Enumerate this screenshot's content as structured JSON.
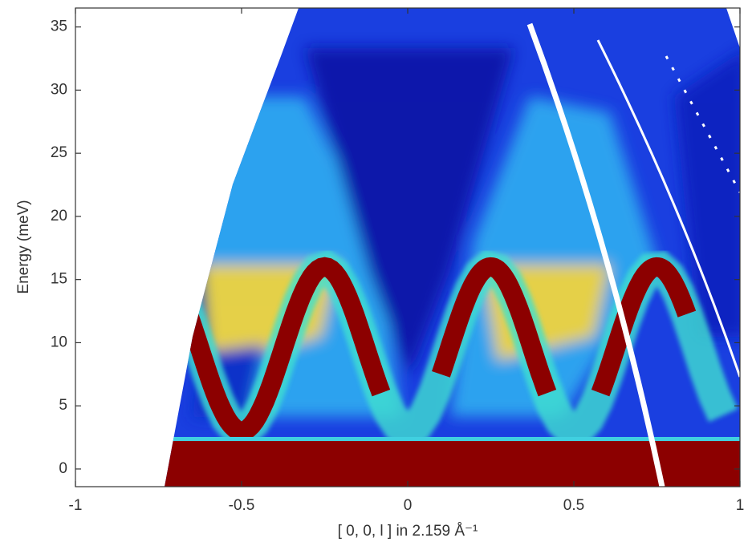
{
  "chart_data": {
    "type": "heatmap",
    "xlabel": "[ 0, 0, l ]  in 2.159 Å⁻¹",
    "ylabel": "Energy (meV)",
    "xlim": [
      -1,
      1
    ],
    "xticks": [
      -1,
      -0.5,
      0,
      0.5,
      1
    ],
    "ylim": [
      -1.4,
      36.5
    ],
    "yticks": [
      0,
      5,
      10,
      15,
      20,
      25,
      30,
      35
    ]
  }
}
